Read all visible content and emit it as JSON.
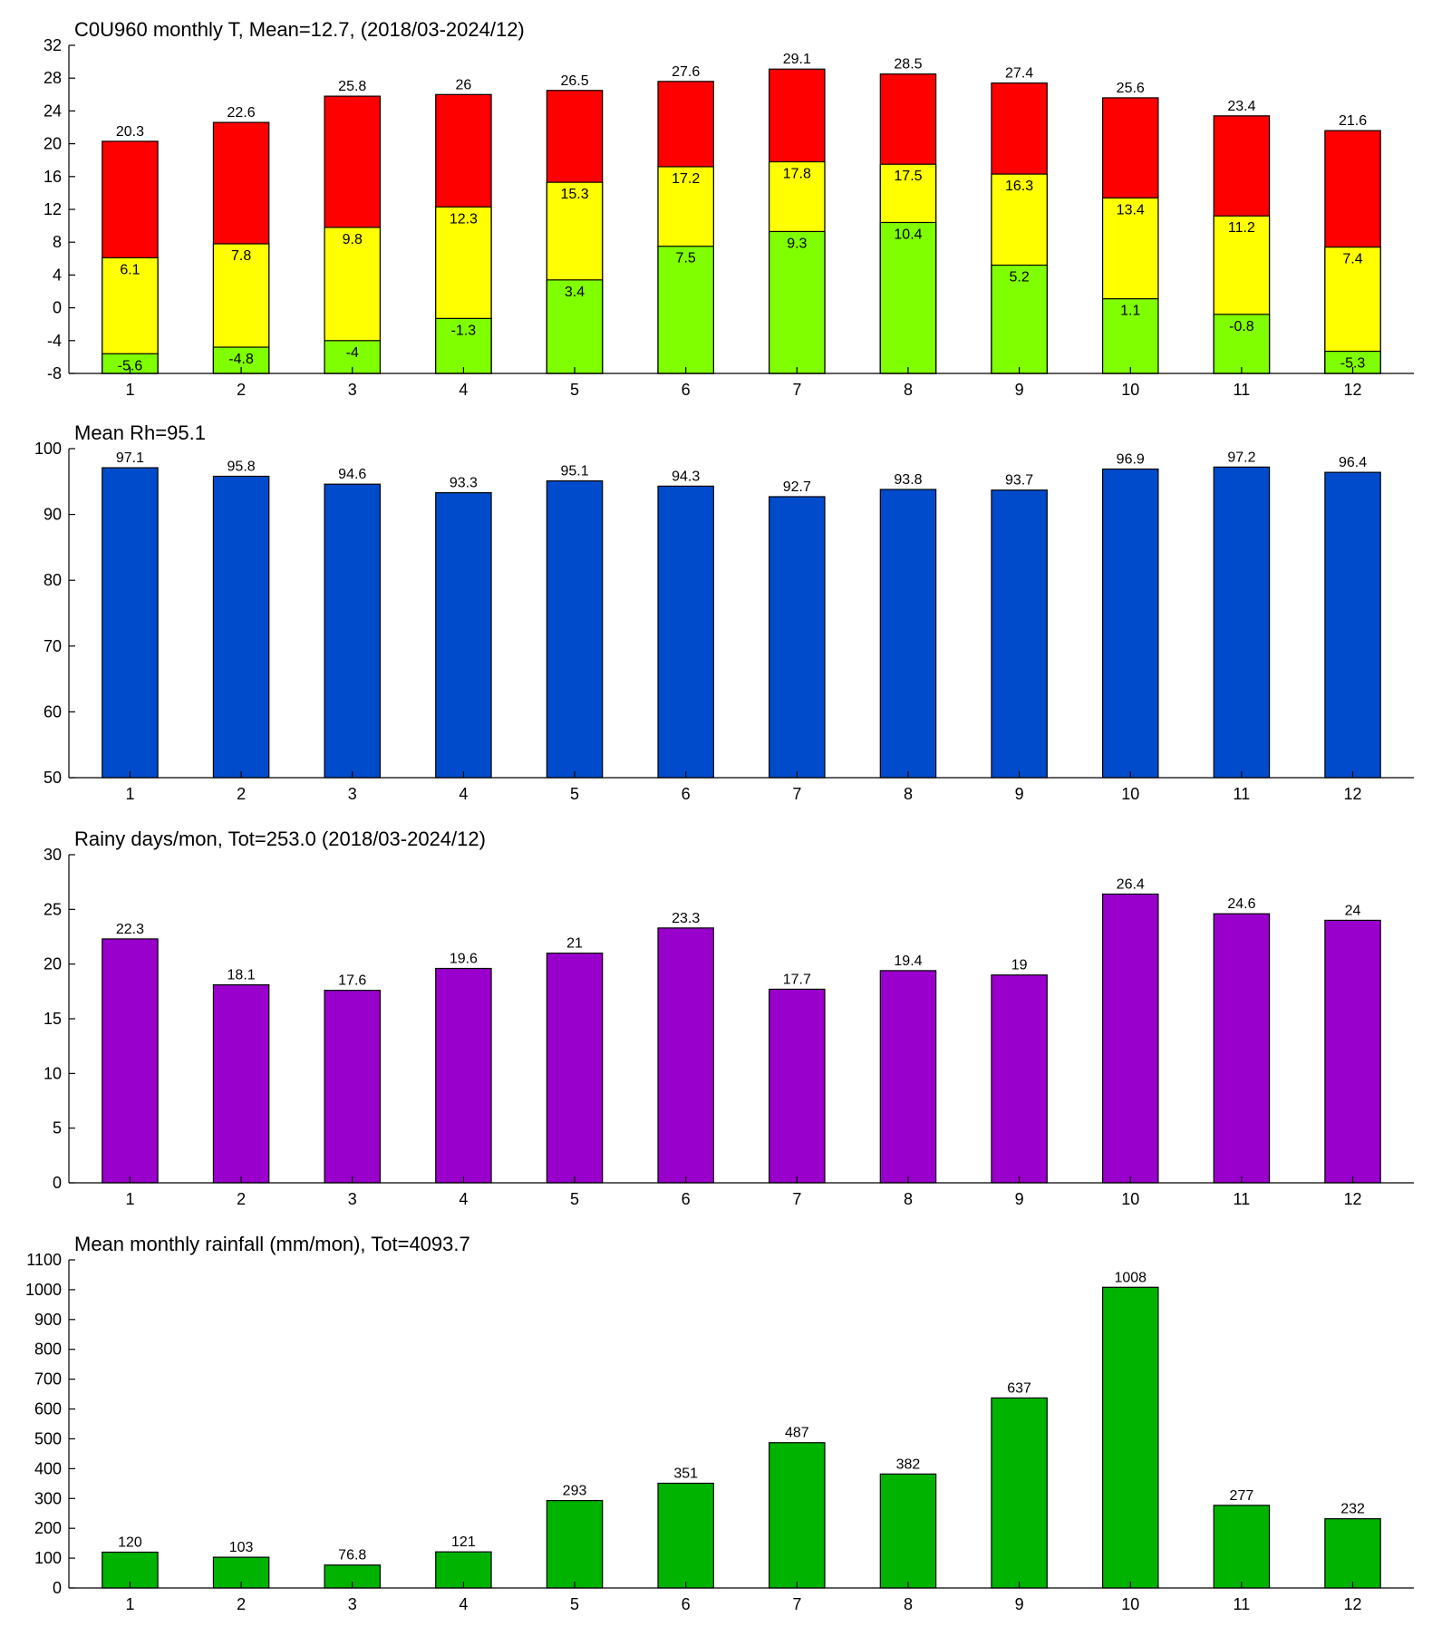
{
  "chart_data": [
    {
      "type": "bar",
      "stacked_display": "overlapping",
      "title": "C0U960 monthly T, Mean=12.7, (2018/03-2024/12)",
      "categories": [
        "1",
        "2",
        "3",
        "4",
        "5",
        "6",
        "7",
        "8",
        "9",
        "10",
        "11",
        "12"
      ],
      "ylim": [
        -8,
        32
      ],
      "yticks": [
        -8,
        -4,
        0,
        4,
        8,
        12,
        16,
        20,
        24,
        28,
        32
      ],
      "grid": false,
      "series": [
        {
          "name": "",
          "color": "#ff0000",
          "values": [
            20.3,
            22.6,
            25.8,
            26,
            26.5,
            27.6,
            29.1,
            28.5,
            27.4,
            25.6,
            23.4,
            21.6
          ],
          "labels": [
            "20.3",
            "22.6",
            "25.8",
            "26",
            "26.5",
            "27.6",
            "29.1",
            "28.5",
            "27.4",
            "25.6",
            "23.4",
            "21.6"
          ]
        },
        {
          "name": "",
          "color": "#ffff00",
          "values": [
            6.1,
            7.8,
            9.8,
            12.3,
            15.3,
            17.2,
            17.8,
            17.5,
            16.3,
            13.4,
            11.2,
            7.4
          ],
          "labels": [
            "6.1",
            "7.8",
            "9.8",
            "12.3",
            "15.3",
            "17.2",
            "17.8",
            "17.5",
            "16.3",
            "13.4",
            "11.2",
            "7.4"
          ]
        },
        {
          "name": "",
          "color": "#80ff00",
          "values": [
            -5.6,
            -4.8,
            -4,
            -1.3,
            3.4,
            7.5,
            9.3,
            10.4,
            5.2,
            1.1,
            -0.8,
            -5.3
          ],
          "labels": [
            "-5.6",
            "-4.8",
            "-4",
            "-1.3",
            "3.4",
            "7.5",
            "9.3",
            "10.4",
            "5.2",
            "1.1",
            "-0.8",
            "-5.3"
          ]
        }
      ]
    },
    {
      "type": "bar",
      "title": "Mean Rh=95.1",
      "categories": [
        "1",
        "2",
        "3",
        "4",
        "5",
        "6",
        "7",
        "8",
        "9",
        "10",
        "11",
        "12"
      ],
      "ylim": [
        50,
        100
      ],
      "yticks": [
        50,
        60,
        70,
        80,
        90,
        100
      ],
      "grid": false,
      "series": [
        {
          "name": "",
          "color": "#004bcc",
          "values": [
            97.1,
            95.8,
            94.6,
            93.3,
            95.1,
            94.3,
            92.7,
            93.8,
            93.7,
            96.9,
            97.2,
            96.4
          ],
          "labels": [
            "97.1",
            "95.8",
            "94.6",
            "93.3",
            "95.1",
            "94.3",
            "92.7",
            "93.8",
            "93.7",
            "96.9",
            "97.2",
            "96.4"
          ]
        }
      ]
    },
    {
      "type": "bar",
      "title": "Rainy days/mon, Tot=253.0 (2018/03-2024/12)",
      "categories": [
        "1",
        "2",
        "3",
        "4",
        "5",
        "6",
        "7",
        "8",
        "9",
        "10",
        "11",
        "12"
      ],
      "ylim": [
        0,
        30
      ],
      "yticks": [
        0,
        5,
        10,
        15,
        20,
        25,
        30
      ],
      "grid": false,
      "series": [
        {
          "name": "",
          "color": "#9900cc",
          "values": [
            22.3,
            18.1,
            17.6,
            19.6,
            21,
            23.3,
            17.7,
            19.4,
            19,
            26.4,
            24.6,
            24
          ],
          "labels": [
            "22.3",
            "18.1",
            "17.6",
            "19.6",
            "21",
            "23.3",
            "17.7",
            "19.4",
            "19",
            "26.4",
            "24.6",
            "24"
          ]
        }
      ]
    },
    {
      "type": "bar",
      "title": "Mean monthly rainfall (mm/mon), Tot=4093.7",
      "categories": [
        "1",
        "2",
        "3",
        "4",
        "5",
        "6",
        "7",
        "8",
        "9",
        "10",
        "11",
        "12"
      ],
      "ylim": [
        0,
        1100
      ],
      "yticks": [
        0,
        100,
        200,
        300,
        400,
        500,
        600,
        700,
        800,
        900,
        1000,
        1100
      ],
      "grid": false,
      "series": [
        {
          "name": "",
          "color": "#00b300",
          "values": [
            120,
            103,
            76.8,
            121,
            293,
            351,
            487,
            382,
            637,
            1008,
            277,
            232
          ],
          "labels": [
            "120",
            "103",
            "76.8",
            "121",
            "293",
            "351",
            "487",
            "382",
            "637",
            "1008",
            "277",
            "232"
          ]
        }
      ]
    }
  ]
}
